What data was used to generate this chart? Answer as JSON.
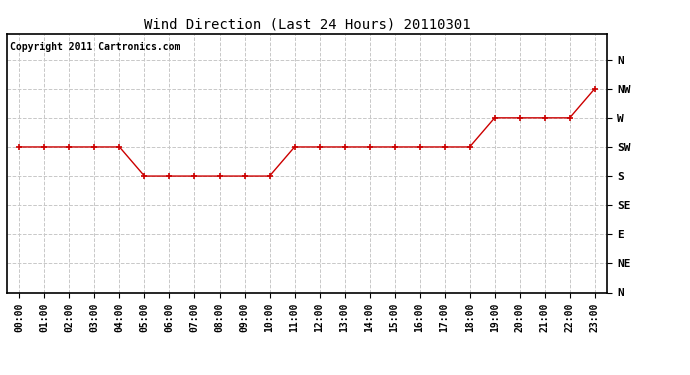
{
  "title": "Wind Direction (Last 24 Hours) 20110301",
  "copyright": "Copyright 2011 Cartronics.com",
  "background_color": "#ffffff",
  "plot_bg_color": "#ffffff",
  "line_color": "#cc0000",
  "marker_color": "#cc0000",
  "grid_color": "#c8c8c8",
  "hours": [
    0,
    1,
    2,
    3,
    4,
    5,
    6,
    7,
    8,
    9,
    10,
    11,
    12,
    13,
    14,
    15,
    16,
    17,
    18,
    19,
    20,
    21,
    22,
    23
  ],
  "wind_directions": [
    225,
    225,
    225,
    225,
    225,
    180,
    180,
    180,
    180,
    180,
    180,
    225,
    225,
    225,
    225,
    225,
    225,
    225,
    225,
    270,
    270,
    270,
    270,
    315
  ],
  "ytick_labels": [
    "N",
    "NW",
    "W",
    "SW",
    "S",
    "SE",
    "E",
    "NE",
    "N"
  ],
  "ytick_values": [
    360,
    315,
    270,
    225,
    180,
    135,
    90,
    45,
    0
  ],
  "title_fontsize": 10,
  "copyright_fontsize": 7,
  "tick_fontsize": 8,
  "xtick_fontsize": 7
}
